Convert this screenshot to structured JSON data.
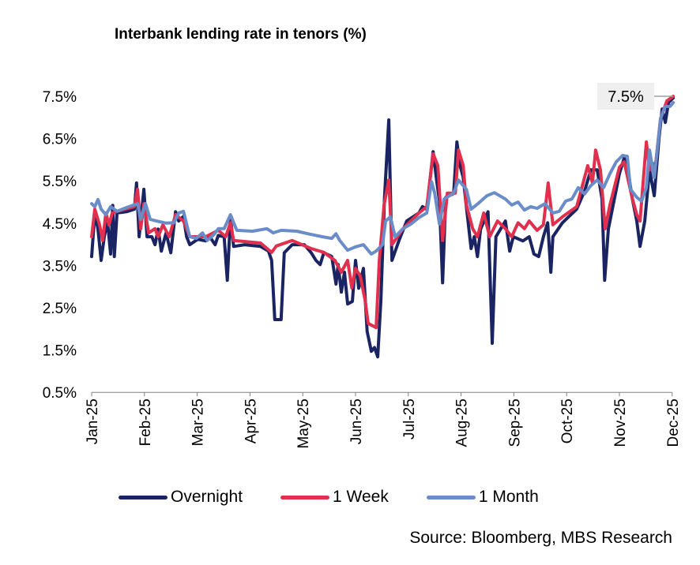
{
  "chart_data": {
    "type": "line",
    "title": "Interbank lending rate in tenors (%)",
    "xlabel": "",
    "ylabel": "",
    "x_unit": "months since Jan-25",
    "xlim": [
      0,
      11.02
    ],
    "ylim": [
      0.5,
      7.5
    ],
    "yticks": [
      "0.5%",
      "1.5%",
      "2.5%",
      "3.5%",
      "4.5%",
      "5.5%",
      "6.5%",
      "7.5%"
    ],
    "ytick_values": [
      0.5,
      1.5,
      2.5,
      3.5,
      4.5,
      5.5,
      6.5,
      7.5
    ],
    "xticks": [
      "Jan-25",
      "Feb-25",
      "Mar-25",
      "Apr-25",
      "May-25",
      "Jun-25",
      "Jul-25",
      "Aug-25",
      "Sep-25",
      "Oct-25",
      "Nov-25",
      "Dec-25"
    ],
    "grid": false,
    "legend_position": "bottom",
    "annotation": {
      "text": "7.5%",
      "x": 11.02,
      "y": 7.5
    },
    "source": "Source: Bloomberg, MBS Research",
    "series": [
      {
        "name": "Overnight",
        "color": "#1b2463",
        "points": [
          [
            0,
            3.71
          ],
          [
            0.06,
            4.74
          ],
          [
            0.12,
            4.36
          ],
          [
            0.18,
            3.62
          ],
          [
            0.24,
            4.18
          ],
          [
            0.3,
            4.55
          ],
          [
            0.36,
            3.77
          ],
          [
            0.4,
            4.92
          ],
          [
            0.43,
            3.71
          ],
          [
            0.48,
            4.74
          ],
          [
            0.66,
            4.77
          ],
          [
            0.81,
            4.83
          ],
          [
            0.85,
            5.45
          ],
          [
            0.9,
            4.18
          ],
          [
            0.99,
            5.3
          ],
          [
            1.05,
            4.18
          ],
          [
            1.14,
            4.18
          ],
          [
            1.2,
            3.99
          ],
          [
            1.26,
            4.36
          ],
          [
            1.32,
            3.84
          ],
          [
            1.41,
            4.27
          ],
          [
            1.5,
            3.8
          ],
          [
            1.59,
            4.77
          ],
          [
            1.65,
            4.55
          ],
          [
            1.74,
            4.66
          ],
          [
            1.8,
            4.18
          ],
          [
            1.86,
            3.99
          ],
          [
            2.01,
            4.12
          ],
          [
            2.16,
            4.08
          ],
          [
            2.22,
            4.21
          ],
          [
            2.34,
            3.99
          ],
          [
            2.4,
            4.21
          ],
          [
            2.51,
            4.18
          ],
          [
            2.57,
            3.15
          ],
          [
            2.63,
            4.64
          ],
          [
            2.69,
            3.95
          ],
          [
            2.9,
            3.99
          ],
          [
            3.2,
            3.95
          ],
          [
            3.35,
            3.84
          ],
          [
            3.41,
            3.62
          ],
          [
            3.47,
            2.22
          ],
          [
            3.59,
            2.22
          ],
          [
            3.65,
            3.8
          ],
          [
            3.8,
            3.99
          ],
          [
            4.03,
            3.99
          ],
          [
            4.16,
            3.8
          ],
          [
            4.25,
            3.62
          ],
          [
            4.33,
            3.52
          ],
          [
            4.4,
            3.8
          ],
          [
            4.55,
            3.71
          ],
          [
            4.63,
            3.06
          ],
          [
            4.67,
            3.52
          ],
          [
            4.73,
            2.87
          ],
          [
            4.79,
            3.34
          ],
          [
            4.85,
            2.59
          ],
          [
            4.94,
            2.65
          ],
          [
            5.0,
            3.62
          ],
          [
            5.06,
            2.96
          ],
          [
            5.15,
            3.43
          ],
          [
            5.22,
            1.94
          ],
          [
            5.3,
            1.47
          ],
          [
            5.36,
            1.56
          ],
          [
            5.42,
            1.34
          ],
          [
            5.48,
            2.68
          ],
          [
            5.55,
            5.11
          ],
          [
            5.63,
            6.94
          ],
          [
            5.69,
            3.62
          ],
          [
            5.82,
            4.08
          ],
          [
            5.97,
            4.55
          ],
          [
            6.2,
            4.74
          ],
          [
            6.27,
            4.89
          ],
          [
            6.35,
            4.83
          ],
          [
            6.47,
            6.19
          ],
          [
            6.53,
            5.58
          ],
          [
            6.59,
            5.02
          ],
          [
            6.65,
            3.09
          ],
          [
            6.71,
            5.11
          ],
          [
            6.86,
            5.2
          ],
          [
            6.92,
            6.42
          ],
          [
            6.98,
            5.86
          ],
          [
            7.04,
            5.58
          ],
          [
            7.1,
            4.89
          ],
          [
            7.19,
            3.9
          ],
          [
            7.25,
            4.18
          ],
          [
            7.31,
            3.71
          ],
          [
            7.37,
            4.36
          ],
          [
            7.51,
            4.77
          ],
          [
            7.59,
            1.66
          ],
          [
            7.66,
            4.18
          ],
          [
            7.84,
            4.55
          ],
          [
            7.92,
            3.84
          ],
          [
            7.99,
            4.18
          ],
          [
            8.17,
            4.08
          ],
          [
            8.29,
            4.18
          ],
          [
            8.38,
            3.77
          ],
          [
            8.47,
            3.71
          ],
          [
            8.56,
            4.18
          ],
          [
            8.64,
            4.51
          ],
          [
            8.7,
            3.34
          ],
          [
            8.74,
            4.18
          ],
          [
            8.92,
            4.51
          ],
          [
            9.19,
            4.83
          ],
          [
            9.34,
            5.26
          ],
          [
            9.46,
            5.76
          ],
          [
            9.58,
            5.76
          ],
          [
            9.67,
            5.07
          ],
          [
            9.72,
            3.15
          ],
          [
            9.79,
            4.36
          ],
          [
            9.91,
            5.11
          ],
          [
            10.0,
            5.67
          ],
          [
            10.09,
            6.04
          ],
          [
            10.15,
            5.86
          ],
          [
            10.24,
            5.11
          ],
          [
            10.33,
            4.55
          ],
          [
            10.39,
            3.95
          ],
          [
            10.48,
            4.55
          ],
          [
            10.57,
            5.76
          ],
          [
            10.66,
            5.15
          ],
          [
            10.75,
            6.51
          ],
          [
            10.81,
            7.2
          ],
          [
            10.87,
            6.88
          ],
          [
            10.93,
            7.35
          ],
          [
            11.02,
            7.46
          ]
        ]
      },
      {
        "name": "1 Week",
        "color": "#e0304e",
        "points": [
          [
            0,
            4.18
          ],
          [
            0.06,
            4.83
          ],
          [
            0.15,
            4.46
          ],
          [
            0.21,
            4.09
          ],
          [
            0.27,
            4.74
          ],
          [
            0.33,
            4.46
          ],
          [
            0.39,
            4.74
          ],
          [
            0.48,
            4.78
          ],
          [
            0.81,
            4.89
          ],
          [
            0.87,
            5.3
          ],
          [
            0.93,
            4.37
          ],
          [
            0.99,
            4.96
          ],
          [
            1.08,
            4.27
          ],
          [
            1.2,
            4.37
          ],
          [
            1.26,
            4.18
          ],
          [
            1.35,
            4.46
          ],
          [
            1.47,
            4.18
          ],
          [
            1.59,
            4.7
          ],
          [
            1.74,
            4.55
          ],
          [
            1.86,
            4.18
          ],
          [
            2.16,
            4.18
          ],
          [
            2.4,
            4.33
          ],
          [
            2.54,
            4.18
          ],
          [
            2.63,
            4.51
          ],
          [
            2.69,
            4.09
          ],
          [
            3.2,
            4.03
          ],
          [
            3.41,
            3.81
          ],
          [
            3.5,
            3.96
          ],
          [
            3.8,
            4.09
          ],
          [
            4.16,
            3.9
          ],
          [
            4.4,
            3.81
          ],
          [
            4.61,
            3.62
          ],
          [
            4.73,
            3.34
          ],
          [
            4.85,
            3.62
          ],
          [
            4.93,
            2.97
          ],
          [
            5.0,
            3.43
          ],
          [
            5.09,
            3.25
          ],
          [
            5.18,
            2.69
          ],
          [
            5.24,
            2.13
          ],
          [
            5.39,
            2.03
          ],
          [
            5.45,
            3.62
          ],
          [
            5.54,
            4.93
          ],
          [
            5.63,
            5.52
          ],
          [
            5.69,
            3.99
          ],
          [
            5.9,
            4.37
          ],
          [
            6.2,
            4.74
          ],
          [
            6.35,
            4.89
          ],
          [
            6.47,
            6.14
          ],
          [
            6.56,
            5.86
          ],
          [
            6.65,
            4.09
          ],
          [
            6.74,
            5.21
          ],
          [
            6.89,
            5.21
          ],
          [
            6.95,
            6.23
          ],
          [
            7.04,
            5.86
          ],
          [
            7.1,
            4.93
          ],
          [
            7.22,
            4.37
          ],
          [
            7.31,
            4.18
          ],
          [
            7.43,
            4.74
          ],
          [
            7.54,
            4.18
          ],
          [
            7.69,
            4.55
          ],
          [
            7.84,
            4.37
          ],
          [
            7.96,
            4.18
          ],
          [
            8.08,
            4.51
          ],
          [
            8.2,
            4.37
          ],
          [
            8.29,
            4.55
          ],
          [
            8.44,
            4.33
          ],
          [
            8.56,
            4.46
          ],
          [
            8.65,
            5.45
          ],
          [
            8.74,
            4.46
          ],
          [
            8.92,
            4.65
          ],
          [
            9.19,
            4.89
          ],
          [
            9.28,
            5.3
          ],
          [
            9.4,
            5.86
          ],
          [
            9.49,
            5.45
          ],
          [
            9.55,
            6.23
          ],
          [
            9.64,
            5.76
          ],
          [
            9.73,
            4.37
          ],
          [
            9.82,
            4.93
          ],
          [
            10.0,
            5.82
          ],
          [
            10.09,
            5.95
          ],
          [
            10.24,
            5.11
          ],
          [
            10.33,
            4.7
          ],
          [
            10.39,
            4.55
          ],
          [
            10.51,
            6.42
          ],
          [
            10.57,
            5.76
          ],
          [
            10.69,
            5.95
          ],
          [
            10.78,
            6.98
          ],
          [
            10.9,
            7.39
          ],
          [
            11.02,
            7.5
          ]
        ]
      },
      {
        "name": "1 Month",
        "color": "#6a8cc8",
        "points": [
          [
            0,
            4.96
          ],
          [
            0.06,
            4.89
          ],
          [
            0.12,
            5.06
          ],
          [
            0.18,
            4.83
          ],
          [
            0.27,
            4.7
          ],
          [
            0.36,
            4.89
          ],
          [
            0.48,
            4.78
          ],
          [
            0.66,
            4.87
          ],
          [
            0.87,
            4.96
          ],
          [
            0.93,
            4.59
          ],
          [
            1.02,
            4.96
          ],
          [
            1.11,
            4.59
          ],
          [
            1.23,
            4.55
          ],
          [
            1.41,
            4.5
          ],
          [
            1.56,
            4.51
          ],
          [
            1.65,
            4.74
          ],
          [
            1.74,
            4.78
          ],
          [
            1.86,
            4.18
          ],
          [
            1.98,
            4.14
          ],
          [
            2.1,
            4.27
          ],
          [
            2.19,
            4.09
          ],
          [
            2.31,
            4.22
          ],
          [
            2.4,
            4.37
          ],
          [
            2.51,
            4.37
          ],
          [
            2.63,
            4.7
          ],
          [
            2.75,
            4.33
          ],
          [
            3.05,
            4.31
          ],
          [
            3.32,
            4.37
          ],
          [
            3.44,
            4.27
          ],
          [
            3.59,
            4.33
          ],
          [
            3.89,
            4.31
          ],
          [
            4.13,
            4.24
          ],
          [
            4.37,
            4.18
          ],
          [
            4.55,
            4.14
          ],
          [
            4.63,
            4.25
          ],
          [
            4.7,
            4.09
          ],
          [
            4.85,
            3.86
          ],
          [
            5.0,
            3.94
          ],
          [
            5.15,
            3.99
          ],
          [
            5.3,
            3.77
          ],
          [
            5.39,
            3.84
          ],
          [
            5.51,
            3.99
          ],
          [
            5.57,
            4.55
          ],
          [
            5.66,
            4.65
          ],
          [
            5.75,
            4.18
          ],
          [
            5.9,
            4.37
          ],
          [
            6.05,
            4.48
          ],
          [
            6.2,
            4.63
          ],
          [
            6.35,
            4.74
          ],
          [
            6.44,
            5.48
          ],
          [
            6.5,
            5.21
          ],
          [
            6.59,
            4.48
          ],
          [
            6.68,
            5.07
          ],
          [
            6.86,
            5.21
          ],
          [
            6.95,
            5.52
          ],
          [
            7.1,
            5.3
          ],
          [
            7.19,
            4.83
          ],
          [
            7.32,
            4.96
          ],
          [
            7.49,
            5.15
          ],
          [
            7.63,
            5.22
          ],
          [
            7.84,
            5.07
          ],
          [
            7.96,
            4.93
          ],
          [
            8.08,
            5.0
          ],
          [
            8.2,
            4.81
          ],
          [
            8.32,
            4.89
          ],
          [
            8.44,
            4.85
          ],
          [
            8.59,
            4.96
          ],
          [
            8.74,
            4.74
          ],
          [
            8.86,
            4.78
          ],
          [
            8.98,
            5.02
          ],
          [
            9.1,
            5.07
          ],
          [
            9.22,
            5.34
          ],
          [
            9.34,
            5.19
          ],
          [
            9.46,
            5.39
          ],
          [
            9.58,
            5.52
          ],
          [
            9.7,
            5.34
          ],
          [
            9.82,
            5.67
          ],
          [
            9.94,
            5.95
          ],
          [
            10.06,
            6.1
          ],
          [
            10.15,
            6.08
          ],
          [
            10.21,
            5.3
          ],
          [
            10.33,
            5.11
          ],
          [
            10.42,
            5.02
          ],
          [
            10.51,
            5.34
          ],
          [
            10.57,
            6.23
          ],
          [
            10.66,
            5.58
          ],
          [
            10.78,
            6.98
          ],
          [
            10.87,
            7.26
          ],
          [
            10.96,
            7.26
          ],
          [
            11.02,
            7.35
          ]
        ]
      }
    ]
  }
}
